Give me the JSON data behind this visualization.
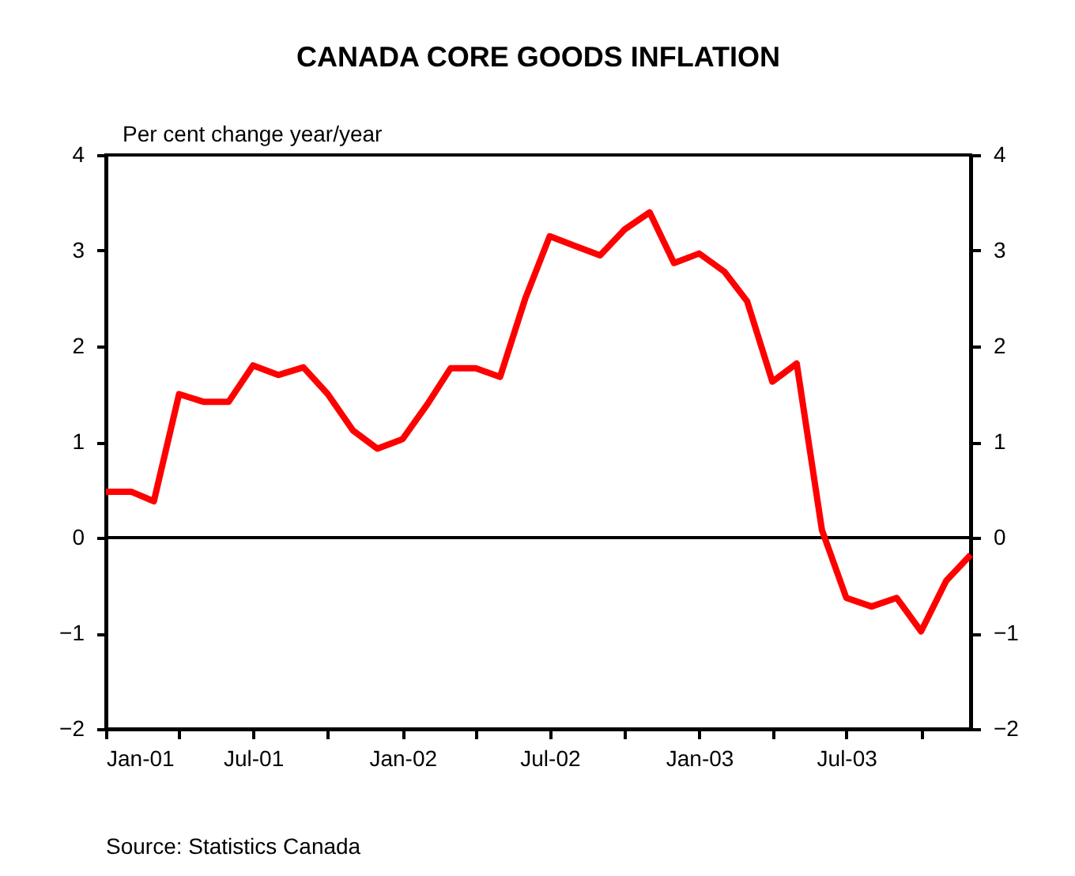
{
  "chart_data": {
    "type": "line",
    "title": "CANADA CORE GOODS INFLATION",
    "ylabel": "Per cent change year/year",
    "annotations": [
      "Source: Statistics Canada"
    ],
    "x": [
      "2001-01",
      "2001-02",
      "2001-03",
      "2001-04",
      "2001-05",
      "2001-06",
      "2001-07",
      "2001-08",
      "2001-09",
      "2001-10",
      "2001-11",
      "2001-12",
      "2002-01",
      "2002-02",
      "2002-03",
      "2002-04",
      "2002-05",
      "2002-06",
      "2002-07",
      "2002-08",
      "2002-09",
      "2002-10",
      "2002-11",
      "2002-12",
      "2003-01",
      "2003-02",
      "2003-03",
      "2003-04",
      "2003-05",
      "2003-06",
      "2003-07",
      "2003-08",
      "2003-09",
      "2003-10",
      "2003-11",
      "2003-12"
    ],
    "series": [
      {
        "color": "#ff0000",
        "values": [
          0.48,
          0.48,
          0.38,
          1.5,
          1.42,
          1.42,
          1.8,
          1.7,
          1.78,
          1.5,
          1.12,
          0.93,
          1.03,
          1.4,
          1.77,
          1.77,
          1.68,
          2.5,
          3.15,
          3.05,
          2.95,
          3.22,
          3.4,
          2.87,
          2.97,
          2.78,
          2.47,
          1.63,
          1.82,
          0.08,
          -0.63,
          -0.72,
          -0.63,
          -0.98,
          -0.45,
          -0.18
        ]
      }
    ],
    "xlim": [
      "2001-01",
      "2003-12"
    ],
    "xticks": [
      {
        "value": "2001-01",
        "label": "Jan-01"
      },
      {
        "value": "2001-04",
        "label": null
      },
      {
        "value": "2001-07",
        "label": "Jul-01"
      },
      {
        "value": "2001-10",
        "label": null
      },
      {
        "value": "2002-01",
        "label": "Jan-02"
      },
      {
        "value": "2002-04",
        "label": null
      },
      {
        "value": "2002-07",
        "label": "Jul-02"
      },
      {
        "value": "2002-10",
        "label": null
      },
      {
        "value": "2003-01",
        "label": "Jan-03"
      },
      {
        "value": "2003-04",
        "label": null
      },
      {
        "value": "2003-07",
        "label": "Jul-03"
      },
      {
        "value": "2003-10",
        "label": null
      }
    ],
    "ylim": [
      -2,
      4
    ],
    "yticks": [
      -2,
      -1,
      0,
      1,
      2,
      3,
      4
    ],
    "y2lim": [
      -2,
      4
    ],
    "y2ticks": [
      -2,
      -1,
      0,
      1,
      2,
      3,
      4
    ],
    "ref_lines": [
      {
        "axis": "y",
        "value": 0,
        "color": "#000000"
      }
    ],
    "grid": false,
    "legend": false,
    "marker": "none",
    "line_style": "solid"
  }
}
